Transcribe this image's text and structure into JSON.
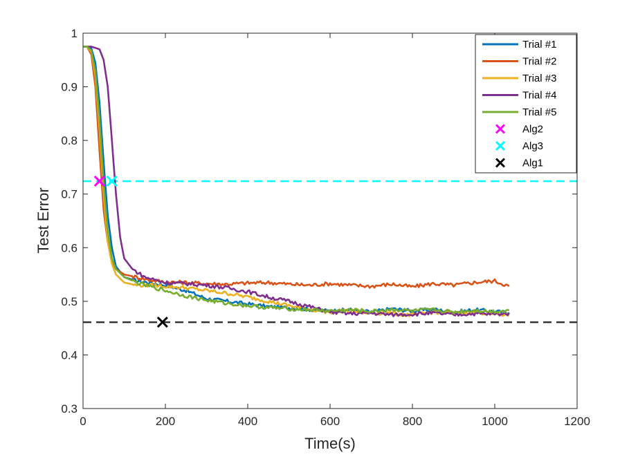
{
  "chart_data": {
    "type": "line",
    "title": "",
    "xlabel": "Time(s)",
    "ylabel": "Test Error",
    "xlim": [
      0,
      1200
    ],
    "ylim": [
      0.3,
      1.0
    ],
    "xticks": [
      0,
      200,
      400,
      600,
      800,
      1000,
      1200
    ],
    "yticks": [
      0.3,
      0.4,
      0.5,
      0.6,
      0.7,
      0.8,
      0.9,
      1.0
    ],
    "xtick_labels": [
      "0",
      "200",
      "400",
      "600",
      "800",
      "1000",
      "1200"
    ],
    "ytick_labels": [
      "0.3",
      "0.4",
      "0.5",
      "0.6",
      "0.7",
      "0.8",
      "0.9",
      "1"
    ],
    "grid": false,
    "legend_position": "top-right",
    "series": [
      {
        "name": "Trial #1",
        "color": "#0072BD",
        "x": [
          0,
          10,
          20,
          30,
          40,
          50,
          60,
          70,
          80,
          100,
          130,
          160,
          200,
          250,
          300,
          350,
          400,
          450,
          500,
          550,
          600,
          650,
          700,
          750,
          800,
          850,
          900,
          950,
          1000,
          1035
        ],
        "y": [
          0.975,
          0.975,
          0.972,
          0.945,
          0.87,
          0.76,
          0.66,
          0.6,
          0.565,
          0.545,
          0.538,
          0.535,
          0.53,
          0.52,
          0.505,
          0.5,
          0.495,
          0.49,
          0.488,
          0.485,
          0.482,
          0.484,
          0.48,
          0.486,
          0.482,
          0.485,
          0.48,
          0.484,
          0.481,
          0.479
        ]
      },
      {
        "name": "Trial #2",
        "color": "#D95319",
        "x": [
          0,
          10,
          20,
          30,
          40,
          50,
          60,
          70,
          80,
          100,
          130,
          160,
          200,
          250,
          300,
          350,
          400,
          450,
          500,
          550,
          600,
          650,
          700,
          750,
          800,
          850,
          900,
          950,
          1000,
          1035
        ],
        "y": [
          0.975,
          0.975,
          0.96,
          0.9,
          0.78,
          0.67,
          0.61,
          0.575,
          0.56,
          0.55,
          0.545,
          0.54,
          0.536,
          0.535,
          0.533,
          0.532,
          0.534,
          0.535,
          0.532,
          0.53,
          0.533,
          0.53,
          0.528,
          0.532,
          0.527,
          0.533,
          0.53,
          0.535,
          0.538,
          0.528
        ]
      },
      {
        "name": "Trial #3",
        "color": "#EDB120",
        "x": [
          0,
          10,
          20,
          30,
          40,
          50,
          60,
          70,
          80,
          100,
          130,
          160,
          200,
          250,
          300,
          350,
          400,
          450,
          500,
          550,
          600,
          650,
          700,
          750,
          800,
          850,
          900,
          950,
          1000,
          1035
        ],
        "y": [
          0.975,
          0.975,
          0.965,
          0.92,
          0.82,
          0.7,
          0.61,
          0.57,
          0.55,
          0.535,
          0.53,
          0.53,
          0.528,
          0.525,
          0.52,
          0.515,
          0.508,
          0.5,
          0.492,
          0.485,
          0.48,
          0.482,
          0.478,
          0.478,
          0.474,
          0.48,
          0.477,
          0.48,
          0.476,
          0.474
        ]
      },
      {
        "name": "Trial #4",
        "color": "#7E2F8E",
        "x": [
          0,
          20,
          40,
          50,
          60,
          70,
          80,
          90,
          100,
          120,
          150,
          200,
          250,
          300,
          350,
          400,
          450,
          500,
          550,
          600,
          650,
          700,
          750,
          800,
          850,
          900,
          950,
          1000,
          1035
        ],
        "y": [
          0.975,
          0.975,
          0.97,
          0.95,
          0.9,
          0.8,
          0.7,
          0.62,
          0.58,
          0.56,
          0.545,
          0.535,
          0.533,
          0.53,
          0.525,
          0.518,
          0.508,
          0.5,
          0.49,
          0.48,
          0.477,
          0.478,
          0.475,
          0.476,
          0.478,
          0.475,
          0.477,
          0.476,
          0.478
        ]
      },
      {
        "name": "Trial #5",
        "color": "#77AC30",
        "x": [
          0,
          10,
          20,
          30,
          40,
          50,
          60,
          70,
          80,
          100,
          130,
          160,
          200,
          250,
          300,
          350,
          400,
          450,
          500,
          550,
          600,
          650,
          700,
          750,
          800,
          850,
          900,
          950,
          1000,
          1035
        ],
        "y": [
          0.975,
          0.975,
          0.968,
          0.93,
          0.84,
          0.72,
          0.63,
          0.58,
          0.56,
          0.545,
          0.535,
          0.528,
          0.52,
          0.51,
          0.502,
          0.496,
          0.492,
          0.488,
          0.486,
          0.484,
          0.482,
          0.484,
          0.481,
          0.485,
          0.482,
          0.484,
          0.48,
          0.483,
          0.481,
          0.483
        ]
      }
    ],
    "markers": [
      {
        "name": "Alg2",
        "color": "#FF00FF",
        "x": 40,
        "y": 0.724
      },
      {
        "name": "Alg3",
        "color": "#00FFFF",
        "x": 70,
        "y": 0.724
      },
      {
        "name": "Alg1",
        "color": "#000000",
        "x": 193,
        "y": 0.461
      }
    ],
    "reference_lines": [
      {
        "name": "Alg3 level",
        "color": "#00FFFF",
        "y": 0.724,
        "style": "dashed"
      },
      {
        "name": "Alg1 level",
        "color": "#333333",
        "y": 0.461,
        "style": "dashed"
      }
    ],
    "legend": [
      "Trial #1",
      "Trial #2",
      "Trial #3",
      "Trial #4",
      "Trial #5",
      "Alg2",
      "Alg3",
      "Alg1"
    ]
  }
}
